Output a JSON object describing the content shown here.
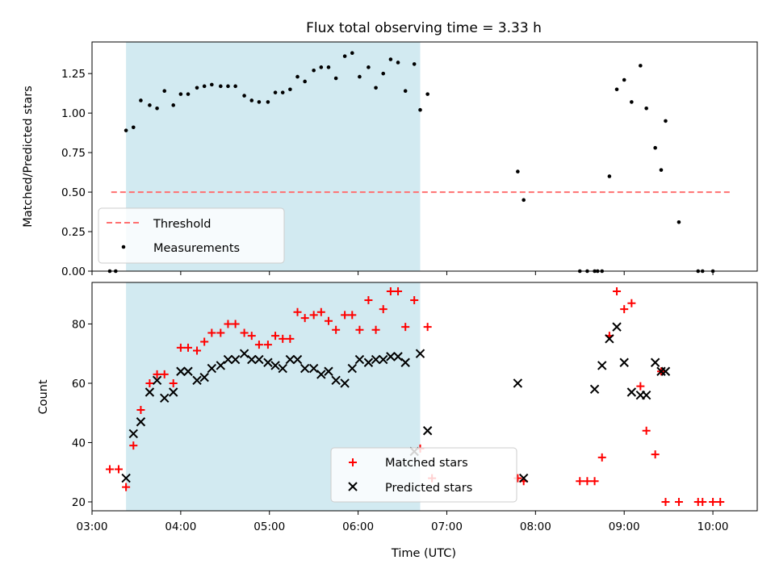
{
  "title": "Flux total observing time = 3.33 h",
  "xlabel": "Time (UTC)",
  "x_ticks": [
    "03:00",
    "04:00",
    "05:00",
    "06:00",
    "07:00",
    "08:00",
    "09:00",
    "10:00"
  ],
  "colors": {
    "shade": "#add8e6",
    "threshold": "#ff7070",
    "measurement": "#000000",
    "matched": "#ff0000",
    "predicted": "#000000"
  },
  "chart_data": [
    {
      "type": "scatter",
      "ylabel": "Matched/Predicted stars",
      "xlim": [
        "03:00",
        "10:30"
      ],
      "ylim": [
        0.0,
        1.45
      ],
      "y_ticks": [
        "0.00",
        "0.25",
        "0.50",
        "0.75",
        "1.00",
        "1.25"
      ],
      "shaded_span": [
        "03:23",
        "06:42"
      ],
      "legend": {
        "location": "lower-left",
        "entries": [
          "Threshold",
          "Measurements"
        ]
      },
      "threshold": {
        "name": "Threshold",
        "value": 0.5,
        "x_range": [
          "03:13",
          "10:13"
        ]
      },
      "series": [
        {
          "name": "Measurements",
          "x": [
            "03:12",
            "03:16",
            "03:23",
            "03:28",
            "03:33",
            "03:39",
            "03:44",
            "03:49",
            "03:55",
            "04:00",
            "04:05",
            "04:11",
            "04:16",
            "04:21",
            "04:27",
            "04:32",
            "04:37",
            "04:43",
            "04:48",
            "04:53",
            "04:59",
            "05:04",
            "05:09",
            "05:14",
            "05:19",
            "05:24",
            "05:30",
            "05:35",
            "05:40",
            "05:45",
            "05:51",
            "05:56",
            "06:01",
            "06:07",
            "06:12",
            "06:17",
            "06:22",
            "06:27",
            "06:32",
            "06:38",
            "06:42",
            "06:47",
            "07:48",
            "07:52",
            "08:30",
            "08:35",
            "08:40",
            "08:42",
            "08:45",
            "08:50",
            "08:55",
            "09:00",
            "09:05",
            "09:11",
            "09:15",
            "09:21",
            "09:25",
            "09:28",
            "09:37",
            "09:50",
            "09:53",
            "10:00"
          ],
          "y": [
            0.0,
            0.0,
            0.89,
            0.91,
            1.08,
            1.05,
            1.03,
            1.14,
            1.05,
            1.12,
            1.12,
            1.16,
            1.17,
            1.18,
            1.17,
            1.17,
            1.17,
            1.11,
            1.08,
            1.07,
            1.07,
            1.13,
            1.13,
            1.15,
            1.23,
            1.2,
            1.27,
            1.29,
            1.29,
            1.22,
            1.36,
            1.38,
            1.23,
            1.29,
            1.16,
            1.25,
            1.34,
            1.32,
            1.14,
            1.31,
            1.02,
            1.12,
            0.63,
            0.45,
            0.0,
            0.0,
            0.0,
            0.0,
            0.0,
            0.6,
            1.15,
            1.21,
            1.07,
            1.3,
            1.03,
            0.78,
            0.64,
            0.95,
            0.31,
            0.0,
            0.0,
            0.0
          ]
        }
      ]
    },
    {
      "type": "scatter",
      "ylabel": "Count",
      "xlim": [
        "03:00",
        "10:30"
      ],
      "ylim": [
        17,
        94
      ],
      "y_ticks": [
        "20",
        "40",
        "60",
        "80"
      ],
      "shaded_span": [
        "03:23",
        "06:42"
      ],
      "legend": {
        "location": "lower-center",
        "entries": [
          "Matched stars",
          "Predicted stars"
        ]
      },
      "series": [
        {
          "name": "Matched stars",
          "marker": "+",
          "x": [
            "03:12",
            "03:18",
            "03:23",
            "03:28",
            "03:33",
            "03:39",
            "03:44",
            "03:49",
            "03:55",
            "04:00",
            "04:05",
            "04:11",
            "04:16",
            "04:21",
            "04:27",
            "04:32",
            "04:37",
            "04:43",
            "04:48",
            "04:53",
            "04:59",
            "05:04",
            "05:09",
            "05:14",
            "05:19",
            "05:24",
            "05:30",
            "05:35",
            "05:40",
            "05:45",
            "05:51",
            "05:56",
            "06:01",
            "06:07",
            "06:12",
            "06:17",
            "06:22",
            "06:27",
            "06:32",
            "06:38",
            "06:42",
            "06:47",
            "06:50",
            "07:48",
            "07:52",
            "08:30",
            "08:35",
            "08:40",
            "08:45",
            "08:50",
            "08:55",
            "09:00",
            "09:05",
            "09:11",
            "09:15",
            "09:21",
            "09:25",
            "09:28",
            "09:37",
            "09:50",
            "09:53",
            "10:00",
            "10:05"
          ],
          "y": [
            31,
            31,
            25,
            39,
            51,
            60,
            63,
            63,
            60,
            72,
            72,
            71,
            74,
            77,
            77,
            80,
            80,
            77,
            76,
            73,
            73,
            76,
            75,
            75,
            84,
            82,
            83,
            84,
            81,
            78,
            83,
            83,
            78,
            88,
            78,
            85,
            91,
            91,
            79,
            88,
            38,
            79,
            28,
            28,
            27,
            27,
            27,
            27,
            35,
            76,
            91,
            85,
            87,
            59,
            44,
            36,
            64,
            20,
            20,
            20,
            20,
            20,
            20
          ]
        },
        {
          "name": "Predicted stars",
          "marker": "x",
          "x": [
            "03:23",
            "03:28",
            "03:33",
            "03:39",
            "03:44",
            "03:49",
            "03:55",
            "04:00",
            "04:05",
            "04:11",
            "04:16",
            "04:21",
            "04:27",
            "04:32",
            "04:37",
            "04:43",
            "04:48",
            "04:53",
            "04:59",
            "05:04",
            "05:09",
            "05:14",
            "05:19",
            "05:24",
            "05:30",
            "05:35",
            "05:40",
            "05:45",
            "05:51",
            "05:56",
            "06:01",
            "06:07",
            "06:12",
            "06:17",
            "06:22",
            "06:27",
            "06:32",
            "06:38",
            "06:42",
            "06:47",
            "07:48",
            "07:52",
            "08:40",
            "08:45",
            "08:50",
            "08:55",
            "09:00",
            "09:05",
            "09:11",
            "09:15",
            "09:21",
            "09:25",
            "09:28"
          ],
          "y": [
            28,
            43,
            47,
            57,
            61,
            55,
            57,
            64,
            64,
            61,
            62,
            65,
            66,
            68,
            68,
            70,
            68,
            68,
            67,
            66,
            65,
            68,
            68,
            65,
            65,
            63,
            64,
            61,
            60,
            65,
            68,
            67,
            68,
            68,
            69,
            69,
            67,
            37,
            70,
            44,
            60,
            28,
            58,
            66,
            75,
            79,
            67,
            57,
            56,
            56,
            67,
            64,
            64
          ]
        }
      ]
    }
  ]
}
